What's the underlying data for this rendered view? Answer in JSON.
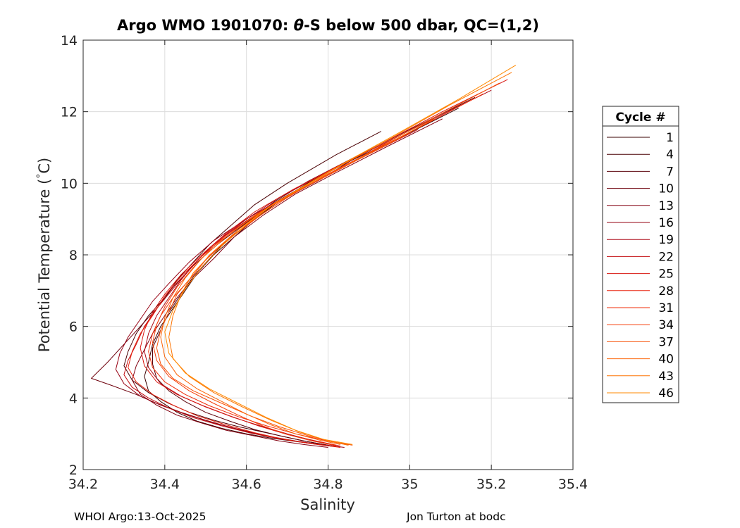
{
  "chart_data": {
    "type": "line",
    "title": "Argo WMO 1901070: θ-S below 500 dbar,  QC=(1,2)",
    "title_parts": {
      "prefix": "Argo WMO 1901070: ",
      "symbol": "θ",
      "suffix": "-S below 500 dbar,  QC=(1,2)"
    },
    "xlabel": "Salinity",
    "ylabel": "Potential Temperature (°C)",
    "ylabel_parts": {
      "main": "Potential Temperature (",
      "degree": "°",
      "unit": "C)"
    },
    "xlim": [
      34.2,
      35.4
    ],
    "ylim": [
      2,
      14
    ],
    "xticks": [
      34.2,
      34.4,
      34.6,
      34.8,
      35,
      35.2,
      35.4
    ],
    "xtick_labels": [
      "34.2",
      "34.4",
      "34.6",
      "34.8",
      "35",
      "35.2",
      "35.4"
    ],
    "yticks": [
      2,
      4,
      6,
      8,
      10,
      12,
      14
    ],
    "ytick_labels": [
      "2",
      "4",
      "6",
      "8",
      "10",
      "12",
      "14"
    ],
    "grid": true,
    "legend": {
      "title": "Cycle #",
      "placement": "right",
      "entries": [
        "1",
        "4",
        "7",
        "10",
        "13",
        "16",
        "19",
        "22",
        "25",
        "28",
        "31",
        "34",
        "37",
        "40",
        "43",
        "46"
      ],
      "colors": [
        "#3a0000",
        "#4a0004",
        "#5a0008",
        "#6e000c",
        "#820010",
        "#960012",
        "#ac0612",
        "#c20c10",
        "#d8140e",
        "#e8200c",
        "#f02e0a",
        "#f53e08",
        "#f85006",
        "#fb6204",
        "#fd7402",
        "#ff8a00"
      ]
    },
    "series": [
      {
        "name": "1",
        "color": "#3a0000",
        "x": [
          35.12,
          34.98,
          34.85,
          34.75,
          34.68,
          34.62,
          34.57,
          34.52,
          34.48,
          34.45,
          34.42,
          34.39,
          34.37,
          34.36,
          34.35,
          34.36,
          34.39,
          34.43,
          34.48,
          34.54,
          34.6,
          34.66,
          34.71,
          34.75,
          34.79,
          34.82
        ],
        "y": [
          12.1,
          11.3,
          10.6,
          10.0,
          9.5,
          9.0,
          8.5,
          8.0,
          7.5,
          7.0,
          6.5,
          6.0,
          5.5,
          5.0,
          4.6,
          4.2,
          3.9,
          3.6,
          3.35,
          3.15,
          3.0,
          2.88,
          2.8,
          2.74,
          2.69,
          2.64
        ]
      },
      {
        "name": "4",
        "color": "#4a0004",
        "x": [
          34.93,
          34.82,
          34.7,
          34.62,
          34.56,
          34.51,
          34.47,
          34.43,
          34.4,
          34.36,
          34.33,
          34.31,
          34.3,
          34.32,
          34.36,
          34.41,
          34.46,
          34.52,
          34.58,
          34.64,
          34.7,
          34.75,
          34.8
        ],
        "y": [
          11.45,
          10.8,
          10.0,
          9.4,
          8.8,
          8.3,
          7.8,
          7.3,
          6.8,
          6.3,
          5.8,
          5.3,
          4.9,
          4.5,
          4.15,
          3.85,
          3.6,
          3.38,
          3.2,
          3.05,
          2.9,
          2.78,
          2.68
        ]
      },
      {
        "name": "7",
        "color": "#5a0008",
        "x": [
          35.16,
          35.0,
          34.86,
          34.75,
          34.67,
          34.6,
          34.55,
          34.51,
          34.47,
          34.44,
          34.41,
          34.39,
          34.37,
          34.37,
          34.38,
          34.41,
          34.45,
          34.5,
          34.56,
          34.62,
          34.68,
          34.74,
          34.79,
          34.83
        ],
        "y": [
          12.4,
          11.5,
          10.7,
          10.05,
          9.5,
          8.9,
          8.4,
          7.9,
          7.4,
          6.9,
          6.4,
          5.9,
          5.4,
          4.95,
          4.55,
          4.2,
          3.9,
          3.6,
          3.35,
          3.12,
          2.95,
          2.8,
          2.7,
          2.62
        ]
      },
      {
        "name": "10",
        "color": "#6e000c",
        "x": [
          34.88,
          34.78,
          34.68,
          34.6,
          34.53,
          34.47,
          34.42,
          34.38,
          34.34,
          34.3,
          34.26,
          34.22,
          34.27,
          34.33,
          34.38,
          34.44,
          34.5,
          34.57,
          34.63,
          34.69,
          34.75,
          34.81
        ],
        "y": [
          10.8,
          10.1,
          9.5,
          8.9,
          8.3,
          7.7,
          7.1,
          6.5,
          6.0,
          5.5,
          5.0,
          4.55,
          4.35,
          4.1,
          3.85,
          3.6,
          3.38,
          3.15,
          2.98,
          2.85,
          2.74,
          2.65
        ]
      },
      {
        "name": "13",
        "color": "#820010",
        "x": [
          35.08,
          34.94,
          34.82,
          34.72,
          34.64,
          34.57,
          34.52,
          34.47,
          34.43,
          34.4,
          34.37,
          34.35,
          34.33,
          34.32,
          34.34,
          34.38,
          34.43,
          34.49,
          34.55,
          34.62,
          34.68,
          34.74,
          34.8
        ],
        "y": [
          11.8,
          11.0,
          10.3,
          9.7,
          9.1,
          8.5,
          7.9,
          7.35,
          6.8,
          6.3,
          5.8,
          5.35,
          4.9,
          4.5,
          4.1,
          3.8,
          3.52,
          3.3,
          3.1,
          2.94,
          2.8,
          2.7,
          2.62
        ]
      },
      {
        "name": "16",
        "color": "#960012",
        "x": [
          34.92,
          34.8,
          34.69,
          34.6,
          34.52,
          34.46,
          34.41,
          34.37,
          34.34,
          34.31,
          34.29,
          34.28,
          34.3,
          34.34,
          34.39,
          34.45,
          34.52,
          34.59,
          34.66,
          34.72,
          34.78,
          34.84
        ],
        "y": [
          11.05,
          10.3,
          9.6,
          9.0,
          8.4,
          7.8,
          7.2,
          6.7,
          6.2,
          5.7,
          5.25,
          4.8,
          4.4,
          4.05,
          3.8,
          3.55,
          3.3,
          3.1,
          2.92,
          2.8,
          2.7,
          2.62
        ]
      },
      {
        "name": "19",
        "color": "#ac0612",
        "x": [
          35.2,
          35.04,
          34.9,
          34.78,
          34.68,
          34.6,
          34.53,
          34.48,
          34.44,
          34.41,
          34.38,
          34.36,
          34.35,
          34.36,
          34.39,
          34.44,
          34.5,
          34.57,
          34.64,
          34.7,
          34.76,
          34.82
        ],
        "y": [
          12.6,
          11.7,
          10.9,
          10.2,
          9.6,
          9.0,
          8.4,
          7.85,
          7.3,
          6.8,
          6.3,
          5.8,
          5.3,
          4.85,
          4.4,
          4.05,
          3.75,
          3.45,
          3.2,
          3.0,
          2.82,
          2.66
        ]
      },
      {
        "name": "22",
        "color": "#c20c10",
        "x": [
          35.02,
          34.88,
          34.76,
          34.66,
          34.58,
          34.51,
          34.46,
          34.42,
          34.38,
          34.35,
          34.33,
          34.31,
          34.3,
          34.32,
          34.36,
          34.41,
          34.47,
          34.54,
          34.61,
          34.68,
          34.75,
          34.82
        ],
        "y": [
          11.5,
          10.7,
          10.0,
          9.4,
          8.8,
          8.2,
          7.6,
          7.05,
          6.5,
          6.0,
          5.5,
          5.05,
          4.65,
          4.3,
          4.0,
          3.72,
          3.45,
          3.22,
          3.02,
          2.86,
          2.74,
          2.64
        ]
      },
      {
        "name": "25",
        "color": "#d8140e",
        "x": [
          35.24,
          35.08,
          34.93,
          34.81,
          34.71,
          34.62,
          34.55,
          34.49,
          34.44,
          34.4,
          34.37,
          34.35,
          34.34,
          34.35,
          34.38,
          34.43,
          34.49,
          34.56,
          34.63,
          34.7,
          34.77,
          34.83
        ],
        "y": [
          12.9,
          12.0,
          11.1,
          10.4,
          9.8,
          9.2,
          8.6,
          8.0,
          7.45,
          6.9,
          6.4,
          5.9,
          5.4,
          4.9,
          4.45,
          4.1,
          3.8,
          3.5,
          3.22,
          2.98,
          2.8,
          2.66
        ]
      },
      {
        "name": "28",
        "color": "#e8200c",
        "x": [
          34.96,
          34.83,
          34.72,
          34.63,
          34.55,
          34.49,
          34.44,
          34.4,
          34.37,
          34.34,
          34.32,
          34.31,
          34.33,
          34.37,
          34.42,
          34.48,
          34.55,
          34.62,
          34.69,
          34.76,
          34.83
        ],
        "y": [
          11.2,
          10.4,
          9.75,
          9.15,
          8.55,
          7.95,
          7.4,
          6.85,
          6.3,
          5.8,
          5.3,
          4.85,
          4.45,
          4.1,
          3.8,
          3.5,
          3.25,
          3.03,
          2.85,
          2.72,
          2.62
        ]
      },
      {
        "name": "31",
        "color": "#f02e0a",
        "x": [
          35.18,
          35.03,
          34.9,
          34.79,
          34.7,
          34.62,
          34.55,
          34.5,
          34.46,
          34.42,
          34.39,
          34.37,
          34.36,
          34.37,
          34.4,
          34.45,
          34.51,
          34.58,
          34.65,
          34.72,
          34.79,
          34.85
        ],
        "y": [
          12.5,
          11.6,
          10.85,
          10.2,
          9.6,
          9.0,
          8.4,
          7.85,
          7.3,
          6.8,
          6.3,
          5.8,
          5.3,
          4.85,
          4.45,
          4.1,
          3.78,
          3.48,
          3.22,
          3.0,
          2.82,
          2.68
        ]
      },
      {
        "name": "34",
        "color": "#f53e08",
        "x": [
          35.0,
          34.88,
          34.77,
          34.67,
          34.59,
          34.52,
          34.47,
          34.43,
          34.4,
          34.38,
          34.37,
          34.38,
          34.41,
          34.46,
          34.52,
          34.58,
          34.64,
          34.7,
          34.76,
          34.82
        ],
        "y": [
          11.4,
          10.7,
          10.05,
          9.45,
          8.85,
          8.25,
          7.65,
          7.1,
          6.55,
          6.05,
          5.55,
          5.05,
          4.6,
          4.2,
          3.85,
          3.52,
          3.22,
          2.98,
          2.8,
          2.67
        ]
      },
      {
        "name": "37",
        "color": "#f85006",
        "x": [
          35.22,
          35.07,
          34.93,
          34.82,
          34.72,
          34.64,
          34.57,
          34.51,
          34.47,
          34.43,
          34.41,
          34.39,
          34.38,
          34.39,
          34.42,
          34.47,
          34.54,
          34.61,
          34.68,
          34.75,
          34.82,
          34.86
        ],
        "y": [
          12.8,
          11.9,
          11.05,
          10.35,
          9.75,
          9.15,
          8.55,
          8.0,
          7.45,
          6.9,
          6.4,
          5.9,
          5.4,
          4.95,
          4.55,
          4.2,
          3.85,
          3.5,
          3.2,
          2.95,
          2.76,
          2.68
        ]
      },
      {
        "name": "40",
        "color": "#fb6204",
        "x": [
          35.06,
          34.93,
          34.81,
          34.71,
          34.62,
          34.55,
          34.49,
          34.45,
          34.42,
          34.4,
          34.39,
          34.4,
          34.43,
          34.48,
          34.54,
          34.6,
          34.66,
          34.72,
          34.78,
          34.83
        ],
        "y": [
          11.8,
          11.0,
          10.3,
          9.7,
          9.1,
          8.5,
          7.9,
          7.35,
          6.8,
          6.25,
          5.7,
          5.15,
          4.65,
          4.25,
          3.9,
          3.55,
          3.25,
          3.0,
          2.82,
          2.7
        ]
      },
      {
        "name": "43",
        "color": "#fd7402",
        "x": [
          35.25,
          35.1,
          34.96,
          34.84,
          34.74,
          34.65,
          34.58,
          34.52,
          34.47,
          34.44,
          34.42,
          34.41,
          34.42,
          34.46,
          34.52,
          34.59,
          34.66,
          34.73,
          34.8,
          34.85
        ],
        "y": [
          13.1,
          12.2,
          11.3,
          10.55,
          9.9,
          9.3,
          8.7,
          8.1,
          7.5,
          6.9,
          6.3,
          5.7,
          5.1,
          4.6,
          4.15,
          3.75,
          3.38,
          3.05,
          2.8,
          2.68
        ]
      },
      {
        "name": "46",
        "color": "#ff8a00",
        "x": [
          35.26,
          35.12,
          34.98,
          34.86,
          34.76,
          34.67,
          34.6,
          34.54,
          34.49,
          34.45,
          34.42,
          34.4,
          34.41,
          34.45,
          34.51,
          34.58,
          34.65,
          34.72,
          34.79,
          34.86
        ],
        "y": [
          13.3,
          12.35,
          11.45,
          10.7,
          10.05,
          9.45,
          8.85,
          8.25,
          7.65,
          7.05,
          6.45,
          5.85,
          5.25,
          4.7,
          4.25,
          3.85,
          3.45,
          3.1,
          2.84,
          2.7
        ]
      }
    ]
  },
  "footer": {
    "left": "WHOI Argo:13-Oct-2025",
    "right": "Jon Turton at bodc"
  }
}
